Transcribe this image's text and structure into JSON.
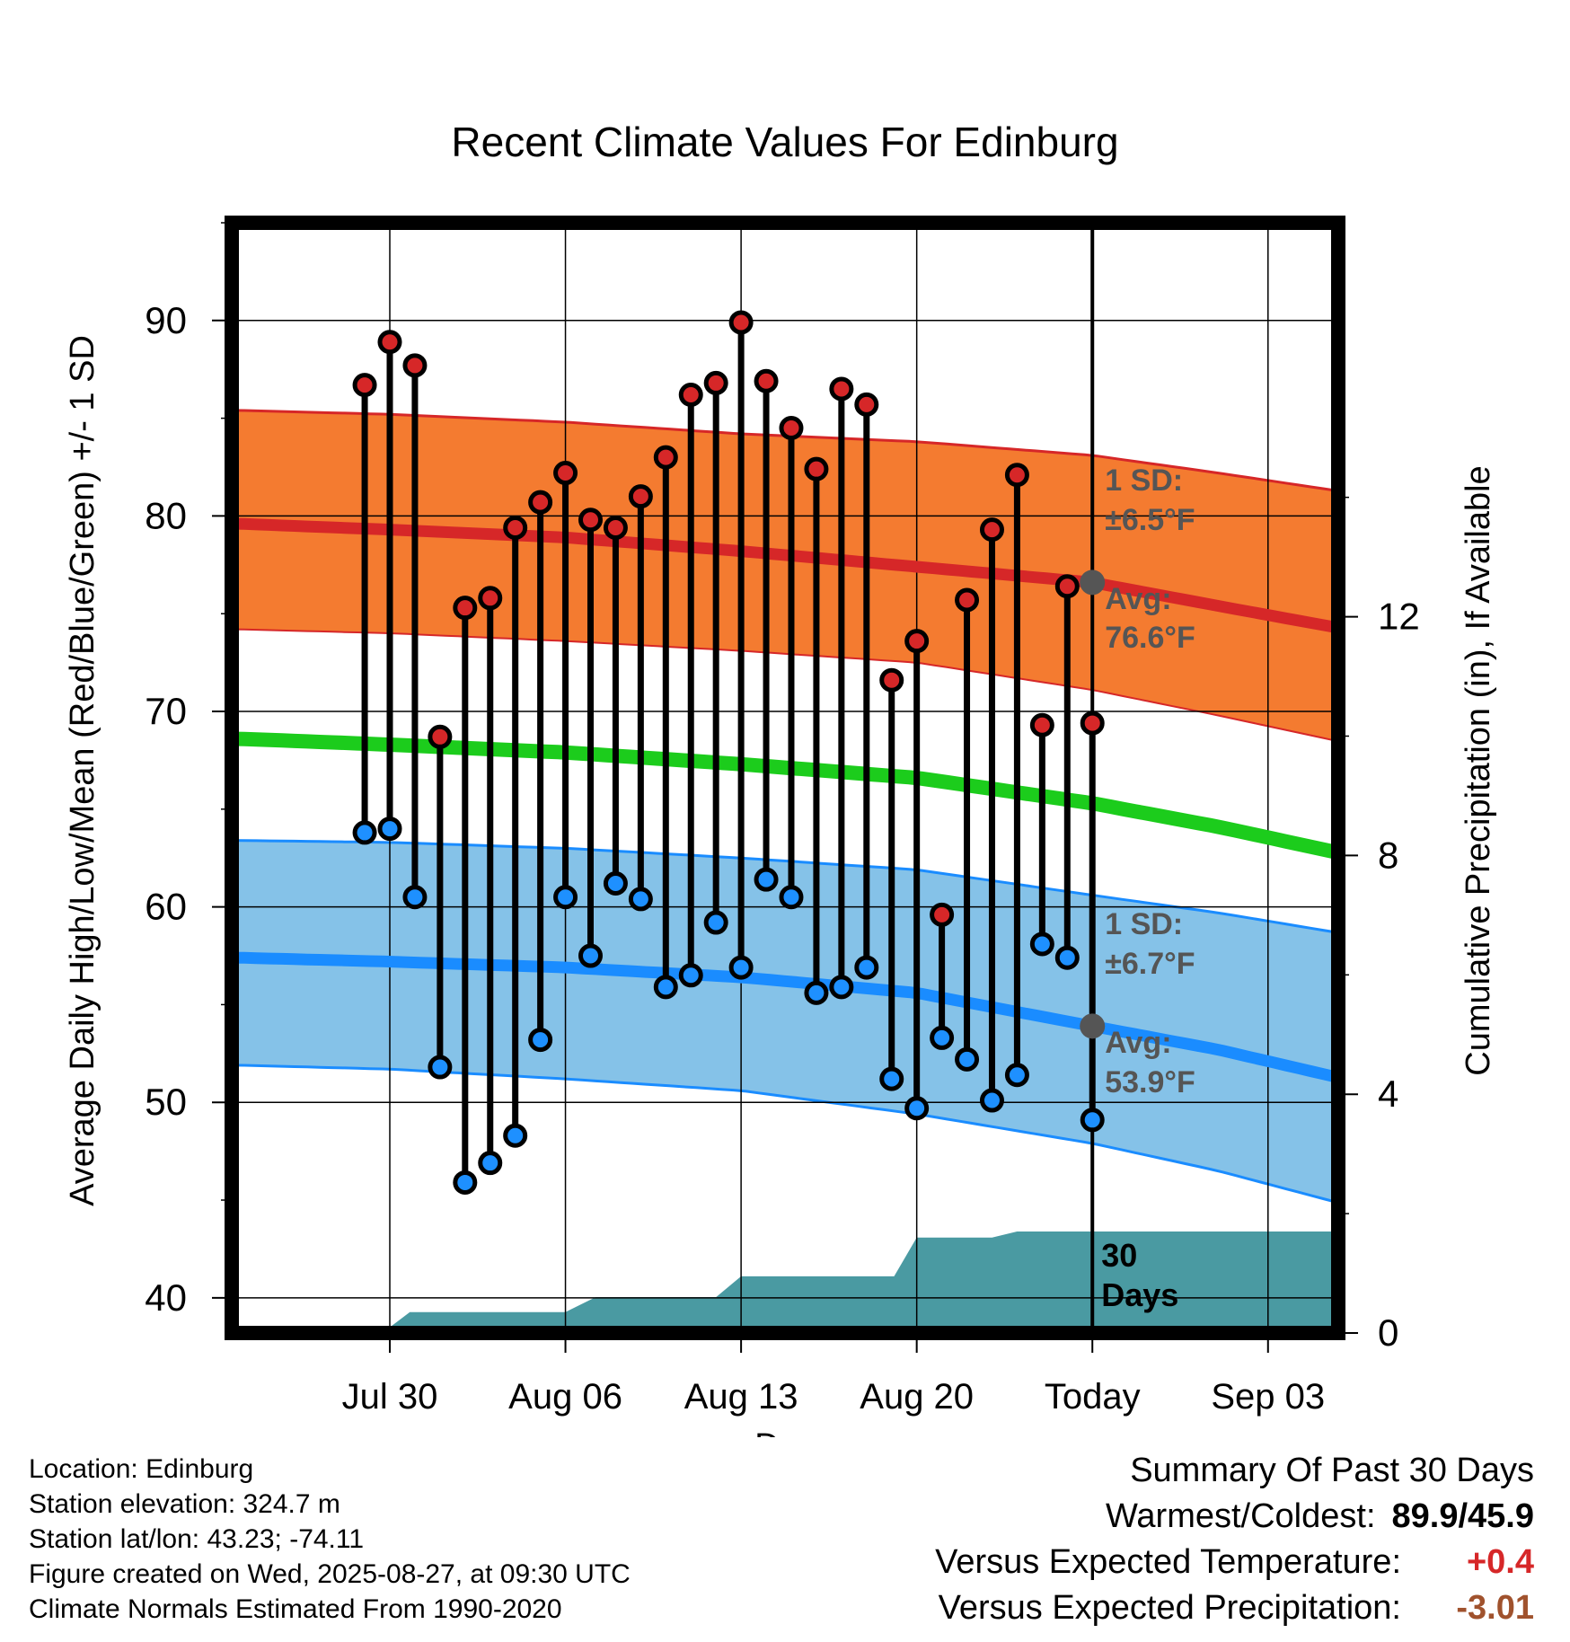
{
  "chart_data": {
    "type": "line",
    "title": "Recent Climate Values For Edinburg",
    "xlabel": "Day",
    "ylabel": "Average Daily High/Low/Mean (Red/Blue/Green) +/- 1 SD",
    "y2label": "Cumulative Precipitation (in), If Available",
    "ylim": [
      38.2,
      95
    ],
    "y2lim": [
      0,
      18.6
    ],
    "yticks": [
      40,
      50,
      60,
      70,
      80,
      90
    ],
    "y2ticks": [
      0,
      4,
      8,
      12
    ],
    "xlim_days": [
      -34.3,
      9.8
    ],
    "x_dates": [
      "Jul 27",
      "Jul 28",
      "Jul 29",
      "Jul 30",
      "Jul 31",
      "Aug 01",
      "Aug 02",
      "Aug 03",
      "Aug 04",
      "Aug 05",
      "Aug 06",
      "Aug 07",
      "Aug 08",
      "Aug 09",
      "Aug 10",
      "Aug 11",
      "Aug 12",
      "Aug 13",
      "Aug 14",
      "Aug 15",
      "Aug 16",
      "Aug 17",
      "Aug 18",
      "Aug 19",
      "Aug 20",
      "Aug 21",
      "Aug 22",
      "Aug 23",
      "Aug 24",
      "Aug 25",
      "Aug 26",
      "Aug 27",
      "Aug 28",
      "Aug 29",
      "Aug 30",
      "Aug 31",
      "Sep 01",
      "Sep 02",
      "Sep 03",
      "Sep 04",
      "Sep 05",
      "Sep 06",
      "Sep 07"
    ],
    "xticks": [
      {
        "label": "Jul 30",
        "day": -28
      },
      {
        "label": "Aug 06",
        "day": -21
      },
      {
        "label": "Aug 13",
        "day": -14
      },
      {
        "label": "Aug 20",
        "day": -7
      },
      {
        "label": "Today",
        "day": 0
      },
      {
        "label": "Sep 03",
        "day": 7
      }
    ],
    "today_label": "Today",
    "daily": {
      "dates": [
        "Jul 28",
        "Jul 29",
        "Jul 30",
        "Jul 31",
        "Aug 01",
        "Aug 02",
        "Aug 03",
        "Aug 04",
        "Aug 05",
        "Aug 06",
        "Aug 07",
        "Aug 08",
        "Aug 09",
        "Aug 10",
        "Aug 11",
        "Aug 12",
        "Aug 13",
        "Aug 14",
        "Aug 15",
        "Aug 16",
        "Aug 17",
        "Aug 18",
        "Aug 19",
        "Aug 20",
        "Aug 21",
        "Aug 22",
        "Aug 23",
        "Aug 24",
        "Aug 25",
        "Aug 26"
      ],
      "high": [
        86.7,
        88.9,
        87.7,
        68.7,
        75.3,
        75.8,
        79.4,
        80.7,
        82.2,
        79.8,
        79.4,
        81.0,
        83.0,
        86.2,
        86.8,
        89.9,
        86.9,
        84.5,
        82.4,
        86.5,
        85.7,
        71.6,
        73.6,
        59.6,
        75.7,
        79.3,
        82.1,
        69.3,
        76.4,
        69.4
      ],
      "low": [
        63.8,
        64.0,
        60.5,
        51.8,
        45.9,
        46.9,
        48.3,
        53.2,
        60.5,
        57.5,
        61.2,
        60.4,
        55.9,
        56.5,
        59.2,
        56.9,
        61.4,
        60.5,
        55.6,
        55.9,
        56.9,
        51.2,
        49.7,
        53.3,
        52.2,
        50.1,
        51.4,
        58.1,
        57.4,
        49.1
      ]
    },
    "normals": {
      "high_avg": [
        79.6,
        79.3,
        78.9,
        78.2,
        77.4,
        76.6,
        75.4,
        74.3
      ],
      "high_upper": [
        85.4,
        85.2,
        84.8,
        84.2,
        83.8,
        83.1,
        82.2,
        81.3
      ],
      "high_lower": [
        74.2,
        74.0,
        73.6,
        73.1,
        72.5,
        71.1,
        69.8,
        68.5
      ],
      "mean_avg": [
        68.6,
        68.3,
        67.9,
        67.3,
        66.6,
        65.3,
        64.1,
        62.8
      ],
      "low_avg": [
        57.4,
        57.2,
        56.9,
        56.4,
        55.6,
        53.9,
        52.7,
        51.3
      ],
      "low_upper": [
        63.4,
        63.3,
        63.0,
        62.5,
        61.9,
        60.6,
        59.7,
        58.7
      ],
      "low_lower": [
        51.9,
        51.7,
        51.2,
        50.6,
        49.4,
        47.9,
        46.5,
        44.9
      ],
      "days": [
        -34,
        -28,
        -21,
        -14,
        -7,
        0,
        5,
        9.7
      ]
    },
    "precip_cumulative": {
      "days": [
        -28.3,
        -27.2,
        -21.0,
        -19.8,
        -15.0,
        -14.0,
        -7.9,
        -7.0,
        -4.0,
        -3.0,
        9.8
      ],
      "values": [
        0,
        0.35,
        0.35,
        0.6,
        0.6,
        0.95,
        0.95,
        1.6,
        1.6,
        1.7,
        1.7
      ]
    },
    "annotations": {
      "high_sd_label": "1 SD:",
      "high_sd_value": "±6.5°F",
      "high_avg_label": "Avg:",
      "high_avg_value": "76.6°F",
      "low_sd_label": "1 SD:",
      "low_sd_value": "±6.7°F",
      "low_avg_label": "Avg:",
      "low_avg_value": "53.9°F",
      "period_line1": "30",
      "period_line2": "Days"
    },
    "grid": true,
    "colors": {
      "high_band": "#f47b30",
      "high_line": "#d62728",
      "mean_line": "#1ccc1c",
      "low_band": "#85c2e8",
      "low_line": "#1a8cff",
      "precip": "#4a9aa2",
      "high_marker": "#d62728",
      "low_marker": "#1e90ff",
      "today_marker": "#555555"
    }
  },
  "footer": {
    "location": "Location: Edinburg",
    "elevation": "Station elevation: 324.7 m",
    "latlon": "Station lat/lon: 43.23; -74.11",
    "created": "Figure created on Wed, 2025-08-27, at 09:30 UTC",
    "normals": "Climate Normals Estimated From 1990-2020"
  },
  "summary": {
    "title": "Summary Of Past 30 Days",
    "warmest_label": "Warmest/Coldest:",
    "warmest_value": "89.9/45.9",
    "temp_label": "Versus Expected Temperature:",
    "temp_value": "+0.4",
    "temp_color": "#d62728",
    "precip_label": "Versus Expected Precipitation:",
    "precip_value": "-3.01",
    "precip_color": "#a0522d"
  }
}
